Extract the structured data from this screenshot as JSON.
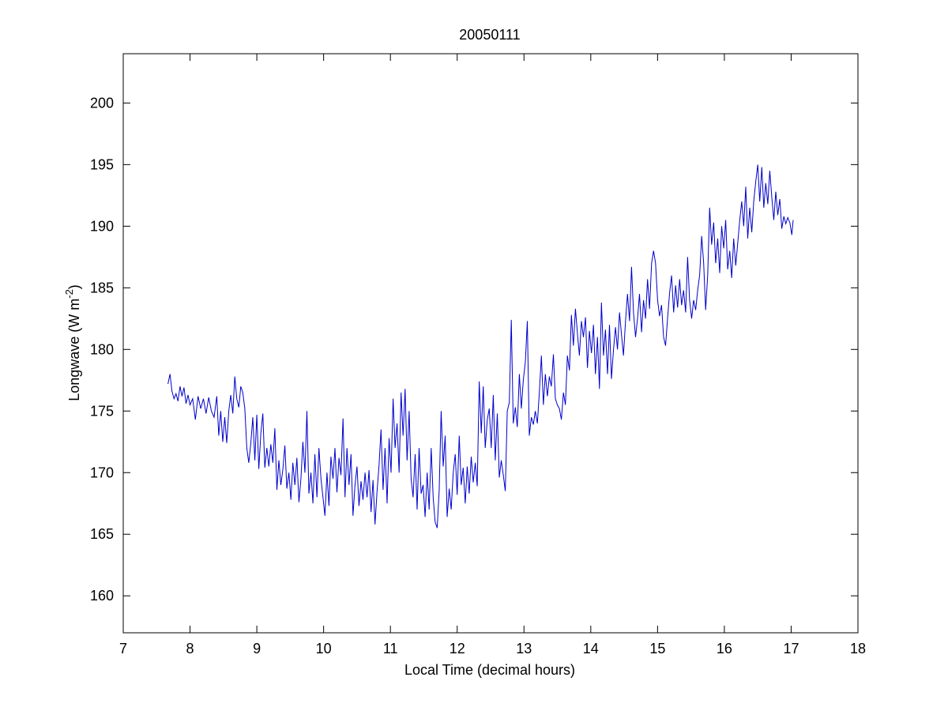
{
  "chart_data": {
    "type": "line",
    "title": "20050111",
    "xlabel": "Local Time (decimal hours)",
    "ylabel_base": "Longwave (W m",
    "ylabel_sup": "-2",
    "ylabel_end": ")",
    "xlim": [
      7,
      18
    ],
    "ylim": [
      157,
      204
    ],
    "xticks": [
      7,
      8,
      9,
      10,
      11,
      12,
      13,
      14,
      15,
      16,
      17,
      18
    ],
    "yticks": [
      160,
      165,
      170,
      175,
      180,
      185,
      190,
      195,
      200
    ],
    "grid": false,
    "line_color": "#0000cc",
    "series": [
      {
        "points": [
          [
            7.67,
            177.2
          ],
          [
            7.7,
            178.0
          ],
          [
            7.73,
            176.6
          ],
          [
            7.76,
            176.0
          ],
          [
            7.79,
            176.4
          ],
          [
            7.82,
            175.8
          ],
          [
            7.85,
            177.0
          ],
          [
            7.88,
            176.2
          ],
          [
            7.91,
            176.9
          ],
          [
            7.94,
            175.6
          ],
          [
            7.97,
            176.3
          ],
          [
            8.0,
            175.5
          ],
          [
            8.04,
            176.0
          ],
          [
            8.08,
            174.3
          ],
          [
            8.12,
            176.2
          ],
          [
            8.16,
            175.2
          ],
          [
            8.2,
            176.0
          ],
          [
            8.24,
            174.8
          ],
          [
            8.28,
            176.1
          ],
          [
            8.32,
            175.0
          ],
          [
            8.36,
            174.5
          ],
          [
            8.4,
            176.2
          ],
          [
            8.43,
            173.0
          ],
          [
            8.46,
            175.0
          ],
          [
            8.49,
            172.5
          ],
          [
            8.52,
            174.5
          ],
          [
            8.55,
            172.4
          ],
          [
            8.58,
            175.0
          ],
          [
            8.61,
            176.3
          ],
          [
            8.64,
            174.8
          ],
          [
            8.67,
            177.8
          ],
          [
            8.7,
            176.0
          ],
          [
            8.73,
            175.3
          ],
          [
            8.76,
            177.0
          ],
          [
            8.79,
            176.5
          ],
          [
            8.82,
            175.2
          ],
          [
            8.85,
            172.0
          ],
          [
            8.88,
            170.8
          ],
          [
            8.91,
            172.4
          ],
          [
            8.94,
            174.5
          ],
          [
            8.97,
            171.0
          ],
          [
            9.0,
            174.7
          ],
          [
            9.03,
            170.3
          ],
          [
            9.06,
            173.2
          ],
          [
            9.09,
            174.8
          ],
          [
            9.12,
            170.4
          ],
          [
            9.15,
            172.0
          ],
          [
            9.18,
            170.5
          ],
          [
            9.21,
            172.3
          ],
          [
            9.24,
            170.8
          ],
          [
            9.27,
            173.6
          ],
          [
            9.3,
            168.6
          ],
          [
            9.33,
            171.0
          ],
          [
            9.36,
            169.0
          ],
          [
            9.39,
            170.3
          ],
          [
            9.42,
            172.2
          ],
          [
            9.45,
            168.7
          ],
          [
            9.48,
            170.0
          ],
          [
            9.51,
            167.8
          ],
          [
            9.54,
            170.8
          ],
          [
            9.57,
            169.0
          ],
          [
            9.6,
            171.2
          ],
          [
            9.63,
            167.6
          ],
          [
            9.66,
            169.5
          ],
          [
            9.69,
            172.5
          ],
          [
            9.72,
            170.0
          ],
          [
            9.75,
            175.0
          ],
          [
            9.78,
            168.3
          ],
          [
            9.81,
            170.0
          ],
          [
            9.84,
            167.5
          ],
          [
            9.87,
            171.5
          ],
          [
            9.9,
            168.0
          ],
          [
            9.93,
            172.0
          ],
          [
            9.96,
            169.5
          ],
          [
            9.99,
            168.0
          ],
          [
            10.02,
            166.5
          ],
          [
            10.05,
            170.0
          ],
          [
            10.08,
            167.3
          ],
          [
            10.11,
            171.3
          ],
          [
            10.14,
            169.5
          ],
          [
            10.17,
            172.0
          ],
          [
            10.2,
            168.4
          ],
          [
            10.23,
            171.2
          ],
          [
            10.26,
            169.8
          ],
          [
            10.29,
            174.4
          ],
          [
            10.32,
            168.0
          ],
          [
            10.35,
            172.0
          ],
          [
            10.38,
            169.0
          ],
          [
            10.41,
            171.5
          ],
          [
            10.44,
            166.5
          ],
          [
            10.47,
            169.0
          ],
          [
            10.5,
            170.5
          ],
          [
            10.53,
            167.3
          ],
          [
            10.56,
            169.3
          ],
          [
            10.59,
            167.8
          ],
          [
            10.62,
            170.0
          ],
          [
            10.65,
            168.0
          ],
          [
            10.68,
            170.2
          ],
          [
            10.71,
            166.8
          ],
          [
            10.74,
            169.4
          ],
          [
            10.77,
            165.8
          ],
          [
            10.8,
            168.5
          ],
          [
            10.83,
            170.6
          ],
          [
            10.86,
            173.5
          ],
          [
            10.89,
            168.6
          ],
          [
            10.92,
            172.0
          ],
          [
            10.95,
            167.5
          ],
          [
            10.98,
            172.8
          ],
          [
            11.01,
            170.0
          ],
          [
            11.04,
            176.0
          ],
          [
            11.07,
            172.0
          ],
          [
            11.1,
            174.0
          ],
          [
            11.13,
            170.0
          ],
          [
            11.16,
            176.5
          ],
          [
            11.19,
            173.0
          ],
          [
            11.22,
            176.8
          ],
          [
            11.25,
            171.0
          ],
          [
            11.28,
            175.0
          ],
          [
            11.31,
            169.5
          ],
          [
            11.34,
            168.0
          ],
          [
            11.37,
            171.5
          ],
          [
            11.4,
            167.0
          ],
          [
            11.43,
            172.0
          ],
          [
            11.46,
            168.3
          ],
          [
            11.49,
            169.0
          ],
          [
            11.52,
            166.4
          ],
          [
            11.55,
            170.0
          ],
          [
            11.58,
            167.0
          ],
          [
            11.61,
            172.0
          ],
          [
            11.64,
            168.0
          ],
          [
            11.67,
            166.0
          ],
          [
            11.7,
            165.5
          ],
          [
            11.73,
            168.5
          ],
          [
            11.76,
            175.0
          ],
          [
            11.79,
            170.5
          ],
          [
            11.82,
            173.0
          ],
          [
            11.85,
            166.4
          ],
          [
            11.88,
            168.7
          ],
          [
            11.91,
            167.0
          ],
          [
            11.94,
            170.0
          ],
          [
            11.97,
            171.5
          ],
          [
            12.0,
            168.2
          ],
          [
            12.03,
            173.0
          ],
          [
            12.06,
            169.0
          ],
          [
            12.09,
            170.4
          ],
          [
            12.12,
            167.5
          ],
          [
            12.15,
            170.5
          ],
          [
            12.18,
            168.3
          ],
          [
            12.21,
            171.3
          ],
          [
            12.24,
            169.2
          ],
          [
            12.27,
            170.8
          ],
          [
            12.3,
            168.9
          ],
          [
            12.33,
            177.4
          ],
          [
            12.36,
            173.2
          ],
          [
            12.39,
            177.0
          ],
          [
            12.42,
            172.0
          ],
          [
            12.45,
            174.3
          ],
          [
            12.48,
            175.2
          ],
          [
            12.51,
            172.0
          ],
          [
            12.54,
            176.3
          ],
          [
            12.57,
            171.0
          ],
          [
            12.6,
            174.8
          ],
          [
            12.63,
            169.6
          ],
          [
            12.66,
            171.0
          ],
          [
            12.69,
            169.8
          ],
          [
            12.72,
            168.5
          ],
          [
            12.75,
            175.0
          ],
          [
            12.78,
            175.7
          ],
          [
            12.81,
            182.4
          ],
          [
            12.84,
            174.0
          ],
          [
            12.87,
            175.3
          ],
          [
            12.9,
            173.7
          ],
          [
            12.93,
            178.0
          ],
          [
            12.96,
            175.2
          ],
          [
            12.99,
            177.5
          ],
          [
            13.02,
            179.0
          ],
          [
            13.05,
            182.3
          ],
          [
            13.08,
            173.0
          ],
          [
            13.11,
            174.5
          ],
          [
            13.14,
            173.9
          ],
          [
            13.17,
            175.0
          ],
          [
            13.2,
            174.0
          ],
          [
            13.23,
            176.5
          ],
          [
            13.26,
            179.5
          ],
          [
            13.29,
            175.5
          ],
          [
            13.32,
            178.0
          ],
          [
            13.35,
            176.2
          ],
          [
            13.38,
            177.8
          ],
          [
            13.41,
            177.0
          ],
          [
            13.44,
            179.6
          ],
          [
            13.47,
            176.0
          ],
          [
            13.5,
            175.5
          ],
          [
            13.53,
            175.2
          ],
          [
            13.56,
            174.3
          ],
          [
            13.59,
            176.5
          ],
          [
            13.62,
            175.5
          ],
          [
            13.65,
            179.5
          ],
          [
            13.68,
            178.3
          ],
          [
            13.71,
            182.8
          ],
          [
            13.74,
            180.3
          ],
          [
            13.77,
            183.3
          ],
          [
            13.8,
            181.3
          ],
          [
            13.83,
            179.5
          ],
          [
            13.86,
            182.3
          ],
          [
            13.89,
            181.0
          ],
          [
            13.92,
            182.6
          ],
          [
            13.95,
            178.5
          ],
          [
            13.98,
            181.5
          ],
          [
            14.01,
            179.7
          ],
          [
            14.04,
            182.0
          ],
          [
            14.07,
            178.0
          ],
          [
            14.1,
            181.0
          ],
          [
            14.13,
            176.8
          ],
          [
            14.16,
            183.8
          ],
          [
            14.19,
            179.5
          ],
          [
            14.22,
            181.6
          ],
          [
            14.25,
            178.0
          ],
          [
            14.28,
            182.0
          ],
          [
            14.31,
            177.6
          ],
          [
            14.34,
            180.0
          ],
          [
            14.37,
            181.8
          ],
          [
            14.4,
            180.0
          ],
          [
            14.43,
            183.0
          ],
          [
            14.46,
            181.2
          ],
          [
            14.49,
            179.5
          ],
          [
            14.52,
            182.3
          ],
          [
            14.55,
            184.5
          ],
          [
            14.58,
            182.3
          ],
          [
            14.61,
            186.7
          ],
          [
            14.64,
            183.0
          ],
          [
            14.67,
            181.0
          ],
          [
            14.7,
            182.5
          ],
          [
            14.73,
            184.5
          ],
          [
            14.76,
            181.4
          ],
          [
            14.79,
            184.0
          ],
          [
            14.82,
            182.5
          ],
          [
            14.85,
            185.7
          ],
          [
            14.88,
            183.3
          ],
          [
            14.91,
            187.0
          ],
          [
            14.94,
            188.0
          ],
          [
            14.97,
            187.0
          ],
          [
            15.0,
            184.0
          ],
          [
            15.03,
            182.7
          ],
          [
            15.06,
            183.6
          ],
          [
            15.09,
            181.0
          ],
          [
            15.12,
            180.3
          ],
          [
            15.15,
            182.5
          ],
          [
            15.18,
            184.6
          ],
          [
            15.21,
            186.0
          ],
          [
            15.24,
            183.0
          ],
          [
            15.27,
            185.2
          ],
          [
            15.3,
            183.4
          ],
          [
            15.33,
            185.7
          ],
          [
            15.36,
            183.6
          ],
          [
            15.39,
            184.8
          ],
          [
            15.42,
            183.0
          ],
          [
            15.45,
            187.5
          ],
          [
            15.48,
            184.0
          ],
          [
            15.51,
            182.5
          ],
          [
            15.54,
            184.0
          ],
          [
            15.57,
            183.2
          ],
          [
            15.6,
            184.8
          ],
          [
            15.63,
            186.0
          ],
          [
            15.66,
            189.2
          ],
          [
            15.69,
            187.0
          ],
          [
            15.72,
            183.2
          ],
          [
            15.75,
            186.0
          ],
          [
            15.78,
            191.5
          ],
          [
            15.81,
            188.5
          ],
          [
            15.84,
            190.3
          ],
          [
            15.87,
            187.0
          ],
          [
            15.9,
            189.0
          ],
          [
            15.93,
            186.2
          ],
          [
            15.96,
            190.0
          ],
          [
            15.99,
            188.2
          ],
          [
            16.02,
            190.5
          ],
          [
            16.05,
            186.5
          ],
          [
            16.08,
            188.0
          ],
          [
            16.11,
            185.8
          ],
          [
            16.14,
            189.0
          ],
          [
            16.17,
            186.8
          ],
          [
            16.2,
            188.6
          ],
          [
            16.23,
            190.5
          ],
          [
            16.26,
            192.0
          ],
          [
            16.29,
            190.0
          ],
          [
            16.32,
            193.2
          ],
          [
            16.35,
            189.0
          ],
          [
            16.38,
            191.5
          ],
          [
            16.41,
            189.5
          ],
          [
            16.44,
            192.0
          ],
          [
            16.47,
            193.6
          ],
          [
            16.5,
            195.0
          ],
          [
            16.53,
            192.0
          ],
          [
            16.56,
            194.8
          ],
          [
            16.59,
            191.5
          ],
          [
            16.62,
            193.5
          ],
          [
            16.65,
            191.8
          ],
          [
            16.68,
            194.5
          ],
          [
            16.71,
            192.4
          ],
          [
            16.74,
            190.5
          ],
          [
            16.77,
            192.8
          ],
          [
            16.8,
            190.9
          ],
          [
            16.83,
            192.2
          ],
          [
            16.86,
            189.8
          ],
          [
            16.89,
            190.8
          ],
          [
            16.92,
            190.2
          ],
          [
            16.95,
            190.7
          ],
          [
            16.98,
            190.3
          ],
          [
            17.01,
            189.3
          ],
          [
            17.03,
            190.5
          ]
        ]
      }
    ]
  }
}
